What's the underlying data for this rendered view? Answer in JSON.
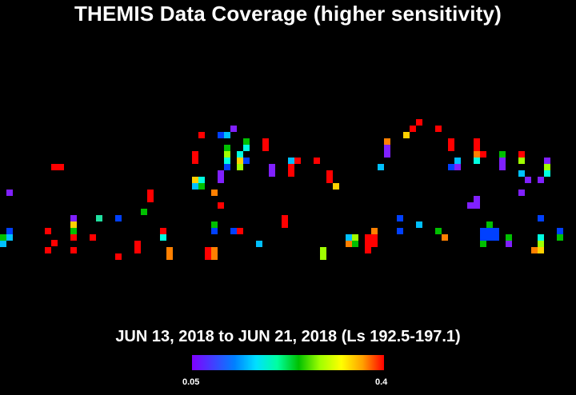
{
  "title": "THEMIS Data Coverage (higher sensitivity)",
  "subtitle": "JUN 13, 2018 to JUN 21, 2018 (Ls 192.5-197.1)",
  "colorbar": {
    "min_label": "0.05",
    "max_label": "0.4",
    "gradient_colors": [
      "#8000ff",
      "#4040ff",
      "#0080ff",
      "#00e0ff",
      "#00ffa0",
      "#00c000",
      "#a0ff00",
      "#ffff00",
      "#ffa000",
      "#ff0000"
    ]
  },
  "colors": {
    "background": "#000000",
    "text": "#ffffff"
  }
}
